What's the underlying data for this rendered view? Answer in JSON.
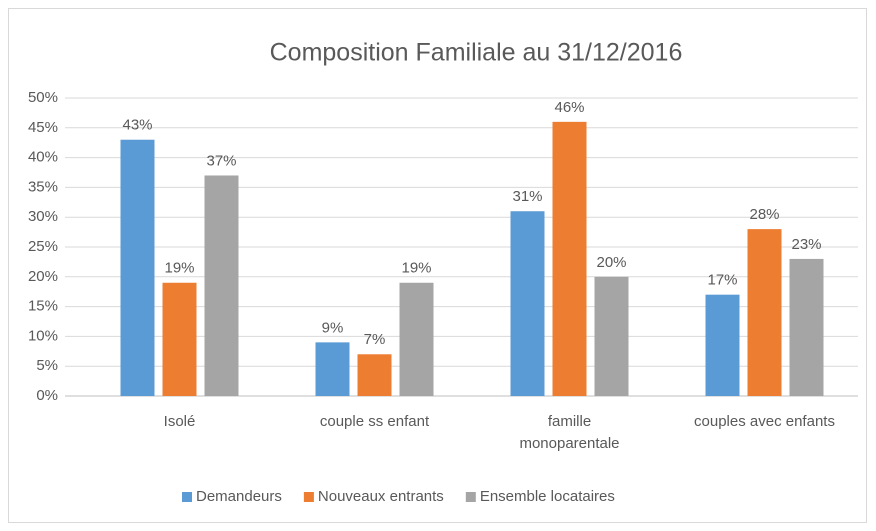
{
  "chart_data": {
    "type": "bar",
    "title": "Composition Familiale au 31/12/2016",
    "categories": [
      "Isolé",
      "couple ss enfant",
      "famille monoparentale",
      "couples avec enfants"
    ],
    "series": [
      {
        "name": "Demandeurs",
        "color": "#5b9bd5",
        "values": [
          43,
          9,
          31,
          17
        ],
        "value_labels": [
          "43%",
          "9%",
          "31%",
          "17%"
        ]
      },
      {
        "name": "Nouveaux entrants",
        "color": "#ed7d31",
        "values": [
          19,
          7,
          46,
          28
        ],
        "value_labels": [
          "19%",
          "7%",
          "46%",
          "28%"
        ]
      },
      {
        "name": "Ensemble locataires",
        "color": "#a5a5a5",
        "values": [
          37,
          19,
          20,
          23
        ],
        "value_labels": [
          "37%",
          "19%",
          "20%",
          "23%"
        ]
      }
    ],
    "ylim": [
      0,
      50
    ],
    "yticks": [
      {
        "value": 0,
        "label": "0%"
      },
      {
        "value": 5,
        "label": "5%"
      },
      {
        "value": 10,
        "label": "10%"
      },
      {
        "value": 15,
        "label": "15%"
      },
      {
        "value": 20,
        "label": "20%"
      },
      {
        "value": 25,
        "label": "25%"
      },
      {
        "value": 30,
        "label": "30%"
      },
      {
        "value": 35,
        "label": "35%"
      },
      {
        "value": 40,
        "label": "40%"
      },
      {
        "value": 45,
        "label": "45%"
      },
      {
        "value": 50,
        "label": "50%"
      }
    ],
    "grid": true,
    "legend": "bottom"
  }
}
